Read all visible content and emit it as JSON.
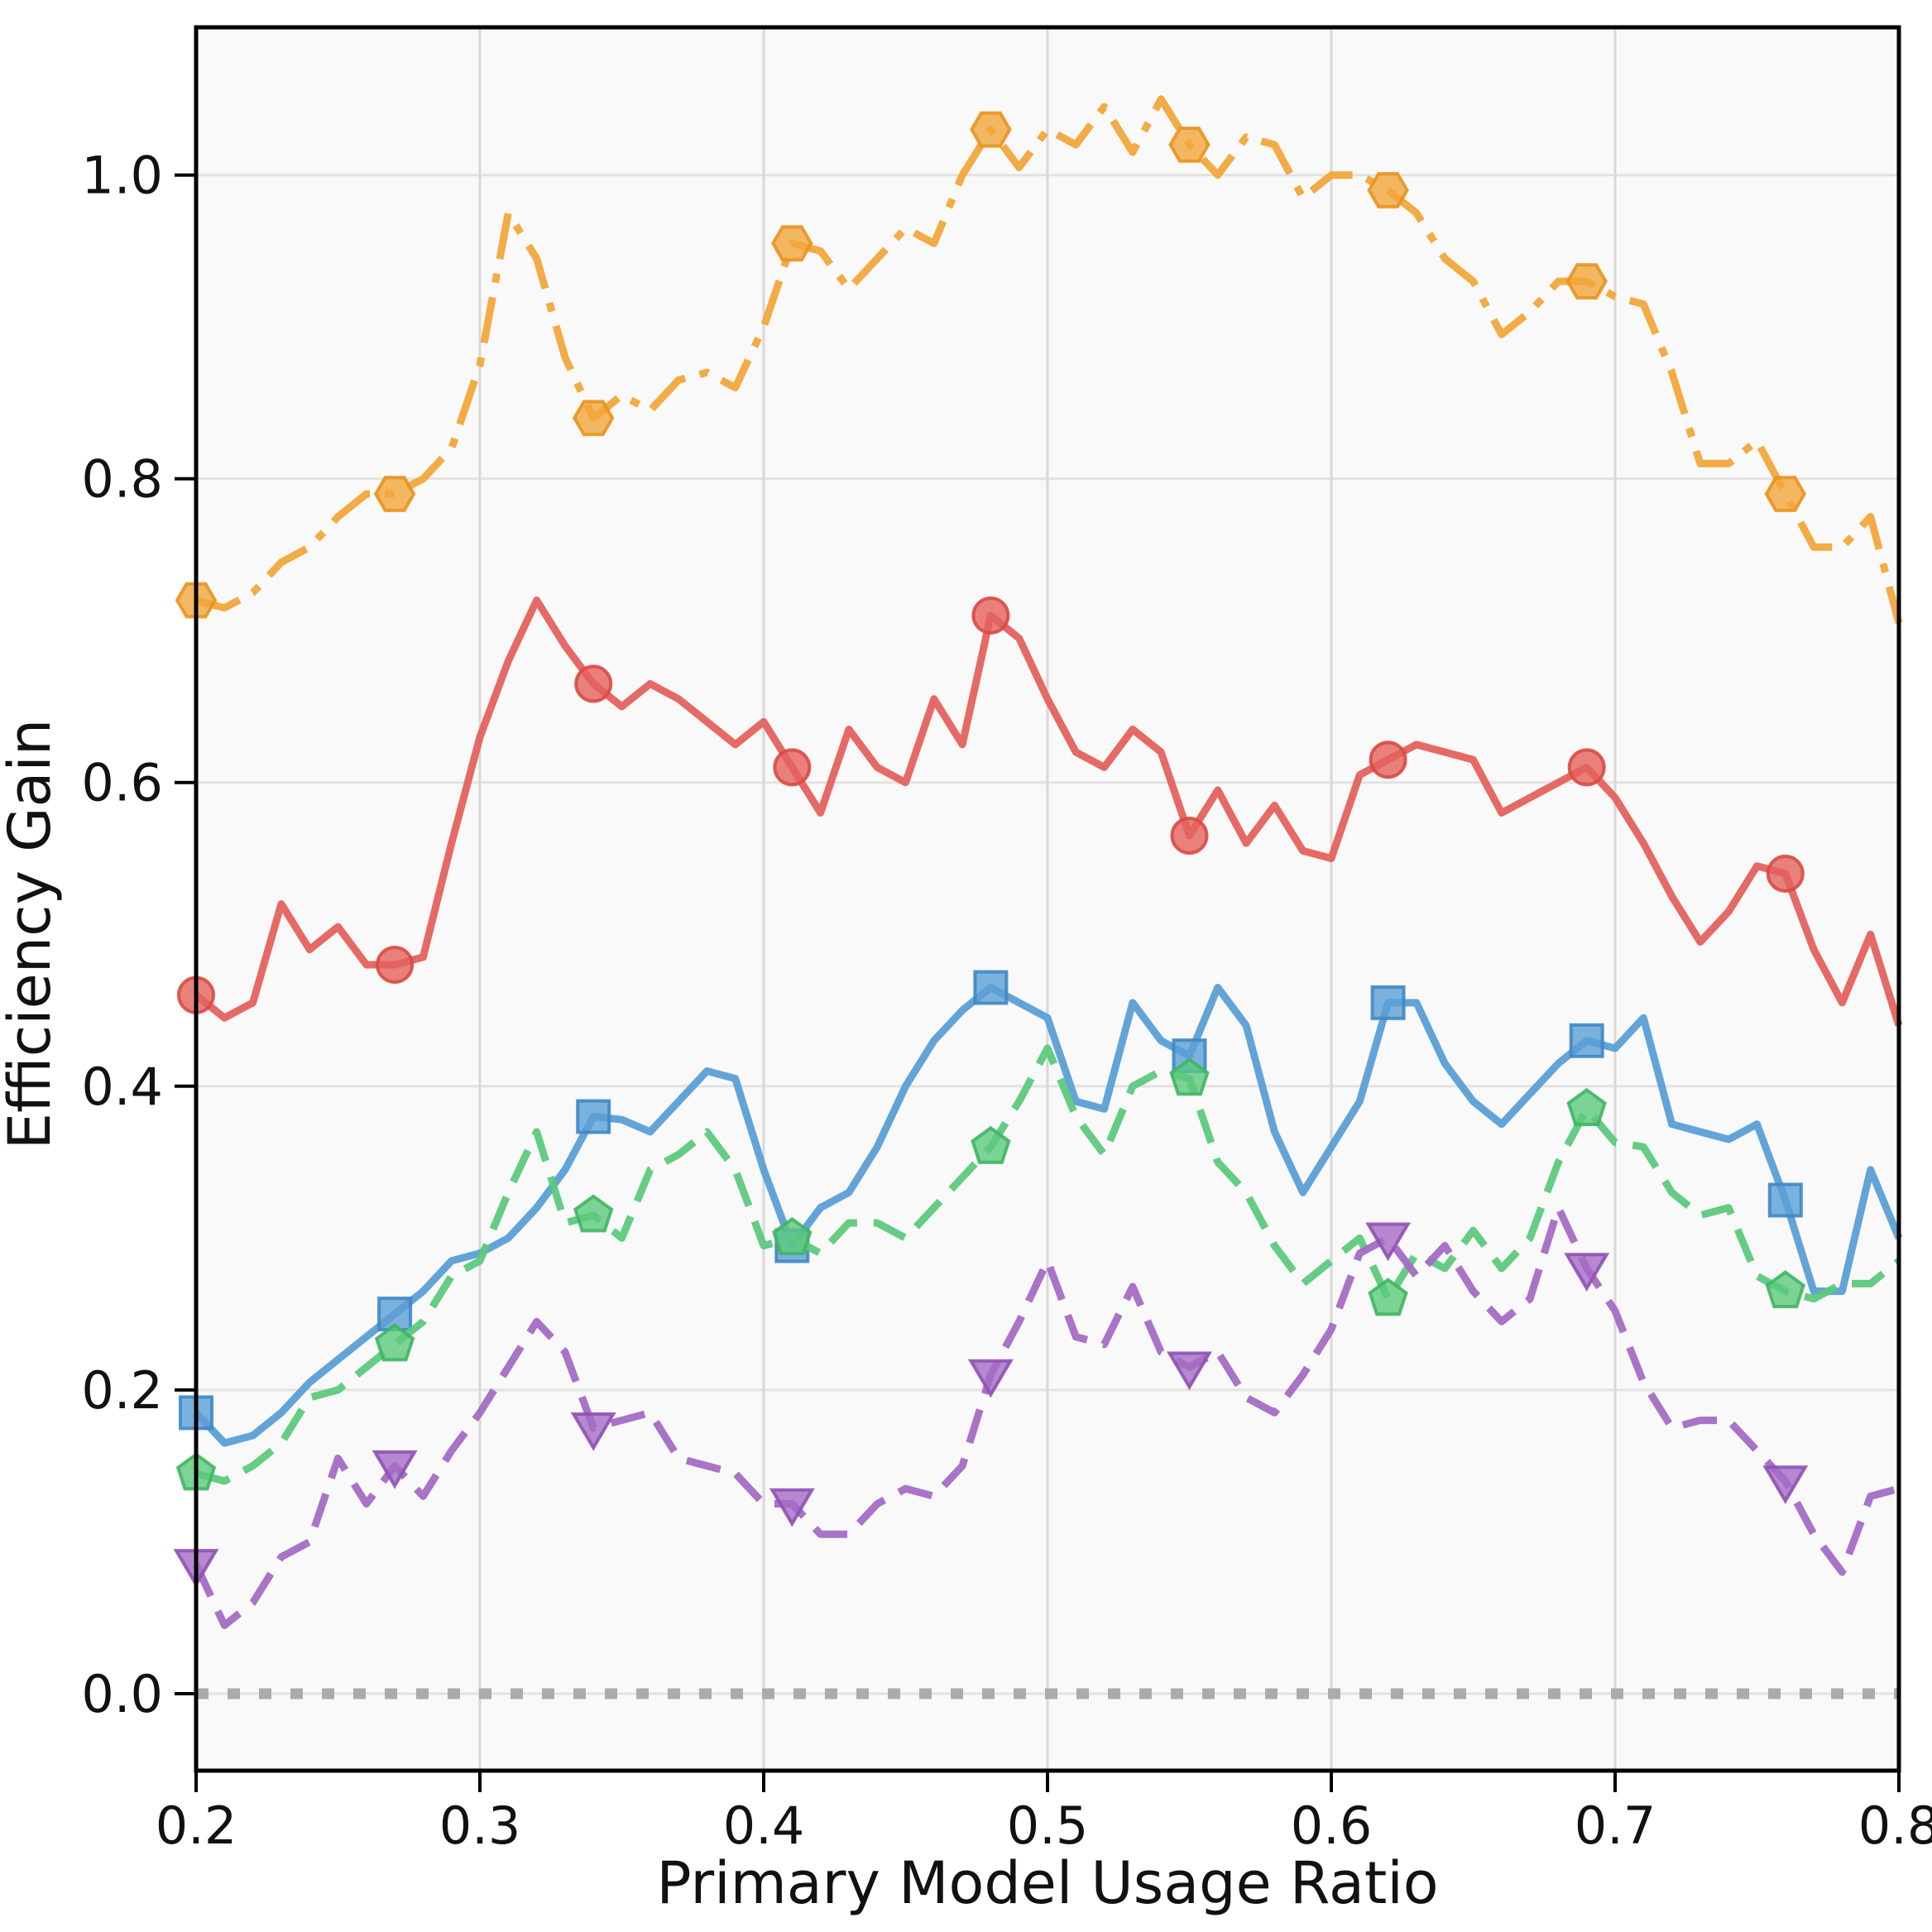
{
  "chart_data": {
    "type": "line",
    "title": "",
    "xlabel": "Primary Model Usage Ratio",
    "ylabel": "Efficiency Gain",
    "xlim": [
      0.2,
      0.8
    ],
    "ylim": [
      -0.0507,
      1.0973
    ],
    "grid": true,
    "legend_position": "none",
    "x_tick_labels": [
      "0.2",
      "0.3",
      "0.4",
      "0.5",
      "0.6",
      "0.7",
      "0.8"
    ],
    "x_tick_values": [
      0.2,
      0.3,
      0.4,
      0.5,
      0.6,
      0.7,
      0.8
    ],
    "y_tick_labels": [
      "0.0",
      "0.2",
      "0.4",
      "0.6",
      "0.8",
      "1.0"
    ],
    "y_tick_values": [
      0.0,
      0.2,
      0.4,
      0.6,
      0.8,
      1.0
    ],
    "x": [
      0.2,
      0.21,
      0.22,
      0.23,
      0.24,
      0.25,
      0.26,
      0.27,
      0.28,
      0.29,
      0.3,
      0.31,
      0.32,
      0.33,
      0.34,
      0.35,
      0.36,
      0.37,
      0.38,
      0.39,
      0.4,
      0.41,
      0.42,
      0.43,
      0.44,
      0.45,
      0.46,
      0.47,
      0.48,
      0.49,
      0.5,
      0.51,
      0.52,
      0.53,
      0.54,
      0.55,
      0.56,
      0.57,
      0.58,
      0.59,
      0.6,
      0.61,
      0.62,
      0.63,
      0.64,
      0.65,
      0.66,
      0.67,
      0.68,
      0.69,
      0.7,
      0.71,
      0.72,
      0.73,
      0.74,
      0.75,
      0.76,
      0.77,
      0.78,
      0.79,
      0.8
    ],
    "markevery": 7,
    "series": [
      {
        "name": "orange",
        "color": "#F2A63B",
        "edge_color": "#E8931F",
        "line_style": "dashdot",
        "marker": "hexagon",
        "values": [
          0.72,
          0.715,
          0.725,
          0.745,
          0.755,
          0.775,
          0.79,
          0.79,
          0.8,
          0.82,
          0.875,
          0.975,
          0.945,
          0.88,
          0.84,
          0.855,
          0.845,
          0.865,
          0.87,
          0.86,
          0.9,
          0.955,
          0.95,
          0.925,
          0.945,
          0.965,
          0.955,
          1.0,
          1.03,
          1.005,
          1.03,
          1.02,
          1.045,
          1.015,
          1.05,
          1.02,
          1.0,
          1.025,
          1.02,
          0.985,
          1.0,
          1.0,
          0.99,
          0.975,
          0.945,
          0.93,
          0.895,
          0.91,
          0.93,
          0.93,
          0.92,
          0.915,
          0.87,
          0.81,
          0.81,
          0.825,
          0.79,
          0.755,
          0.755,
          0.775,
          0.705
        ]
      },
      {
        "name": "red",
        "color": "#E4625D",
        "edge_color": "#D94A44",
        "line_style": "solid",
        "marker": "circle",
        "values": [
          0.46,
          0.445,
          0.455,
          0.52,
          0.49,
          0.505,
          0.48,
          0.48,
          0.485,
          0.56,
          0.63,
          0.68,
          0.72,
          0.69,
          0.665,
          0.65,
          0.665,
          0.655,
          0.64,
          0.625,
          0.64,
          0.61,
          0.58,
          0.635,
          0.61,
          0.6,
          0.655,
          0.625,
          0.71,
          0.695,
          0.655,
          0.62,
          0.61,
          0.635,
          0.62,
          0.565,
          0.595,
          0.56,
          0.585,
          0.555,
          0.55,
          0.605,
          0.615,
          0.625,
          0.62,
          0.615,
          0.58,
          0.59,
          0.6,
          0.61,
          0.59,
          0.56,
          0.525,
          0.495,
          0.515,
          0.545,
          0.54,
          0.49,
          0.455,
          0.5,
          0.44
        ]
      },
      {
        "name": "blue",
        "color": "#5B9FD6",
        "edge_color": "#3E88C7",
        "line_style": "solid",
        "marker": "square",
        "values": [
          0.185,
          0.165,
          0.17,
          0.185,
          0.205,
          0.22,
          0.235,
          0.25,
          0.265,
          0.285,
          0.29,
          0.3,
          0.32,
          0.345,
          0.38,
          0.378,
          0.37,
          0.39,
          0.41,
          0.405,
          0.345,
          0.295,
          0.32,
          0.33,
          0.36,
          0.4,
          0.43,
          0.45,
          0.465,
          0.455,
          0.445,
          0.39,
          0.385,
          0.455,
          0.43,
          0.42,
          0.465,
          0.44,
          0.37,
          0.33,
          0.36,
          0.39,
          0.455,
          0.455,
          0.415,
          0.39,
          0.375,
          0.395,
          0.415,
          0.43,
          0.425,
          0.445,
          0.375,
          0.37,
          0.365,
          0.375,
          0.325,
          0.265,
          0.265,
          0.345,
          0.3
        ]
      },
      {
        "name": "green",
        "color": "#5DC97D",
        "edge_color": "#3FB662",
        "line_style": "dashed",
        "marker": "pentagon",
        "values": [
          0.145,
          0.14,
          0.15,
          0.165,
          0.195,
          0.2,
          0.215,
          0.23,
          0.245,
          0.275,
          0.285,
          0.33,
          0.37,
          0.31,
          0.315,
          0.3,
          0.345,
          0.355,
          0.37,
          0.345,
          0.295,
          0.3,
          0.29,
          0.31,
          0.31,
          0.3,
          0.32,
          0.34,
          0.36,
          0.39,
          0.425,
          0.38,
          0.355,
          0.4,
          0.41,
          0.405,
          0.35,
          0.33,
          0.295,
          0.27,
          0.285,
          0.3,
          0.26,
          0.29,
          0.28,
          0.305,
          0.28,
          0.3,
          0.35,
          0.385,
          0.363,
          0.36,
          0.33,
          0.315,
          0.32,
          0.275,
          0.265,
          0.26,
          0.27,
          0.27,
          0.285
        ]
      },
      {
        "name": "purple",
        "color": "#A46BC4",
        "edge_color": "#8F51B4",
        "line_style": "dashed",
        "marker": "triangle-down",
        "values": [
          0.085,
          0.045,
          0.06,
          0.09,
          0.1,
          0.155,
          0.125,
          0.15,
          0.13,
          0.16,
          0.185,
          0.215,
          0.245,
          0.225,
          0.175,
          0.18,
          0.185,
          0.155,
          0.15,
          0.145,
          0.125,
          0.125,
          0.105,
          0.105,
          0.125,
          0.135,
          0.13,
          0.15,
          0.21,
          0.245,
          0.285,
          0.235,
          0.23,
          0.268,
          0.225,
          0.215,
          0.225,
          0.195,
          0.185,
          0.21,
          0.24,
          0.29,
          0.3,
          0.275,
          0.295,
          0.265,
          0.245,
          0.26,
          0.32,
          0.28,
          0.252,
          0.205,
          0.175,
          0.18,
          0.18,
          0.16,
          0.14,
          0.105,
          0.08,
          0.13,
          0.135
        ]
      }
    ],
    "baseline": {
      "name": "zero-baseline",
      "color": "#ABABAB",
      "line_style": "dotted",
      "value": 0.0
    },
    "style": {
      "plot_background": "#f9f9f9",
      "figure_background": "#ffffff",
      "grid_color_h": "#e2e2e2",
      "grid_color_v": "#d8d8d8",
      "spine_color": "#000000",
      "text_color": "#111111"
    }
  }
}
